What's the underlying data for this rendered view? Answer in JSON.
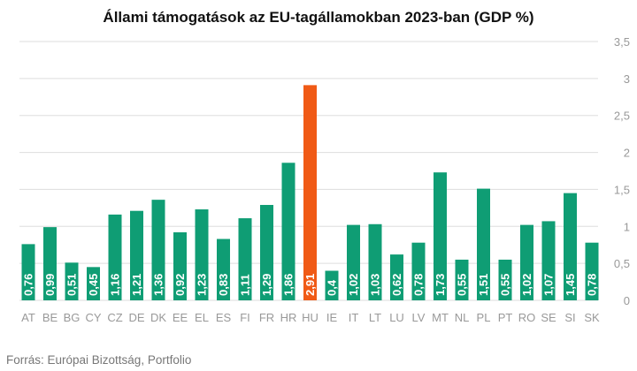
{
  "chart_data": {
    "type": "bar",
    "title": "Állami támogatások az EU-tagállamokban 2023-ban (GDP %)",
    "source": "Forrás: Európai Bizottság, Portfolio",
    "categories": [
      "AT",
      "BE",
      "BG",
      "CY",
      "CZ",
      "DE",
      "DK",
      "EE",
      "EL",
      "ES",
      "FI",
      "FR",
      "HR",
      "HU",
      "IE",
      "IT",
      "LT",
      "LU",
      "LV",
      "MT",
      "NL",
      "PL",
      "PT",
      "RO",
      "SE",
      "SI",
      "SK"
    ],
    "values": [
      0.76,
      0.99,
      0.51,
      0.45,
      1.16,
      1.21,
      1.36,
      0.92,
      1.23,
      0.83,
      1.11,
      1.29,
      1.86,
      2.91,
      0.4,
      1.02,
      1.03,
      0.62,
      0.78,
      1.73,
      0.55,
      1.51,
      0.55,
      1.02,
      1.07,
      1.45,
      0.78
    ],
    "value_labels": [
      "0,76",
      "0,99",
      "0,51",
      "0,45",
      "1,16",
      "1,21",
      "1,36",
      "0,92",
      "1,23",
      "0,83",
      "1,11",
      "1,29",
      "1,86",
      "2,91",
      "0,4",
      "1,02",
      "1,03",
      "0,62",
      "0,78",
      "1,73",
      "0,55",
      "1,51",
      "0,55",
      "1,02",
      "1,07",
      "1,45",
      "0,78"
    ],
    "y_ticks": [
      0,
      0.5,
      1,
      1.5,
      2,
      2.5,
      3,
      3.5
    ],
    "y_tick_labels": [
      "0",
      "0,5",
      "1",
      "1,5",
      "2",
      "2,5",
      "3",
      "3,5"
    ],
    "ylim": [
      0,
      3.5
    ],
    "grid": true,
    "xlabel": "",
    "ylabel": "",
    "colors": {
      "bar": "#0f9d74",
      "highlight": "#f05a16",
      "grid": "#dddddd"
    },
    "highlight_category": "HU"
  }
}
